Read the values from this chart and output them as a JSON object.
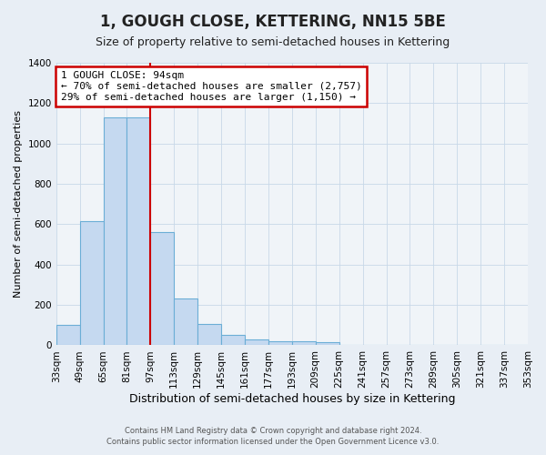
{
  "title": "1, GOUGH CLOSE, KETTERING, NN15 5BE",
  "subtitle": "Size of property relative to semi-detached houses in Kettering",
  "xlabel": "Distribution of semi-detached houses by size in Kettering",
  "ylabel": "Number of semi-detached properties",
  "footer_line1": "Contains HM Land Registry data © Crown copyright and database right 2024.",
  "footer_line2": "Contains public sector information licensed under the Open Government Licence v3.0.",
  "bin_labels": [
    "33sqm",
    "49sqm",
    "65sqm",
    "81sqm",
    "97sqm",
    "113sqm",
    "129sqm",
    "145sqm",
    "161sqm",
    "177sqm",
    "193sqm",
    "209sqm",
    "225sqm",
    "241sqm",
    "257sqm",
    "273sqm",
    "289sqm",
    "305sqm",
    "321sqm",
    "337sqm",
    "353sqm"
  ],
  "bin_edges": [
    33,
    49,
    65,
    81,
    97,
    113,
    129,
    145,
    161,
    177,
    193,
    209,
    225,
    241,
    257,
    273,
    289,
    305,
    321,
    337,
    353
  ],
  "bar_heights": [
    100,
    615,
    1130,
    1130,
    560,
    230,
    105,
    50,
    30,
    20,
    20,
    15,
    0,
    0,
    0,
    0,
    0,
    0,
    0,
    0
  ],
  "bar_color": "#c5d9f0",
  "bar_edge_color": "#6baed6",
  "vline_x": 97,
  "annotation_title": "1 GOUGH CLOSE: 94sqm",
  "annotation_line1": "← 70% of semi-detached houses are smaller (2,757)",
  "annotation_line2": "29% of semi-detached houses are larger (1,150) →",
  "annotation_box_color": "#ffffff",
  "annotation_box_edge": "#cc0000",
  "vline_color": "#cc0000",
  "ylim": [
    0,
    1400
  ],
  "yticks": [
    0,
    200,
    400,
    600,
    800,
    1000,
    1200,
    1400
  ],
  "xlim_min": 33,
  "xlim_max": 353,
  "background_color": "#e8eef5",
  "plot_background": "#f0f4f8",
  "grid_color": "#c8d8e8",
  "title_fontsize": 12,
  "subtitle_fontsize": 9,
  "ylabel_fontsize": 8,
  "xlabel_fontsize": 9,
  "tick_fontsize": 7.5,
  "annot_fontsize": 8
}
